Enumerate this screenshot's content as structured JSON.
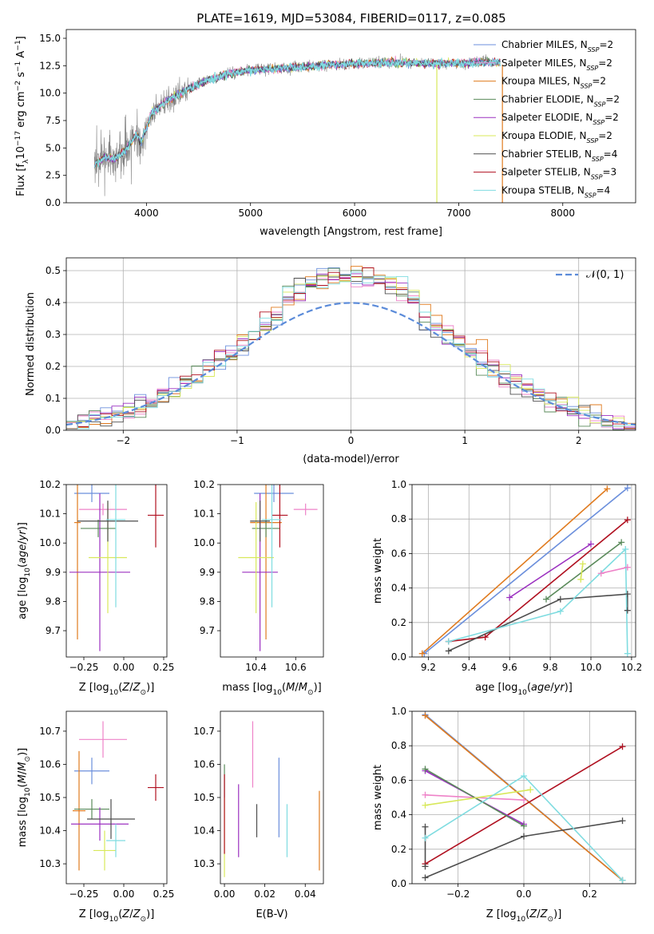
{
  "figure_title": "PLATE=1619, MJD=53084, FIBERID=0117, z=0.085",
  "colors": {
    "chabrier_miles": "#6b8fdc",
    "salpeter_miles": "#ee82c8",
    "kroupa_miles": "#e07b1f",
    "chabrier_elodie": "#5a8a5a",
    "salpeter_elodie": "#9b30c0",
    "kroupa_elodie": "#d8e85a",
    "chabrier_stelib": "#4d4d4d",
    "salpeter_stelib": "#b01020",
    "kroupa_stelib": "#7fdce0",
    "data": "#808080",
    "gaussian": "#5b8bd9"
  },
  "chart_data": [
    {
      "id": "spectrum",
      "type": "line",
      "xlabel": "wavelength [Angstrom, rest frame]",
      "ylabel": "Flux [f_λ 10^-17 erg cm^-2 s^-1 A^-1]",
      "xlim": [
        3230,
        8700
      ],
      "ylim": [
        0,
        15.8
      ],
      "xticks": [
        4000,
        5000,
        6000,
        7000,
        8000
      ],
      "yticks": [
        0.0,
        2.5,
        5.0,
        7.5,
        10.0,
        12.5,
        15.0
      ],
      "ytick_labels": [
        "0.0",
        "2.5",
        "5.0",
        "7.5",
        "10.0",
        "12.5",
        "15.0"
      ],
      "legend_position": "upper right",
      "continuum_x": [
        3500,
        3600,
        3700,
        3800,
        3900,
        3950,
        4050,
        4200,
        4400,
        4600,
        4800,
        5000,
        5200,
        5500,
        5800,
        6100,
        6400,
        6700,
        7000,
        7200,
        7400
      ],
      "continuum_y": [
        3.4,
        4.2,
        4.0,
        4.8,
        6.2,
        5.5,
        8.2,
        9.3,
        10.4,
        11.2,
        11.8,
        12.1,
        12.2,
        12.4,
        12.6,
        12.7,
        12.8,
        12.7,
        12.7,
        12.8,
        12.8
      ],
      "series": [
        {
          "name": "Chabrier MILES, N$_{SSP}$=2",
          "color_key": "chabrier_miles"
        },
        {
          "name": "Salpeter MILES, N$_{SSP}$=2",
          "color_key": "salpeter_miles"
        },
        {
          "name": "Kroupa MILES, N$_{SSP}$=2",
          "color_key": "kroupa_miles"
        },
        {
          "name": "Chabrier ELODIE, N$_{SSP}$=2",
          "color_key": "chabrier_elodie"
        },
        {
          "name": "Salpeter ELODIE, N$_{SSP}$=2",
          "color_key": "salpeter_elodie"
        },
        {
          "name": "Kroupa ELODIE, N$_{SSP}$=2",
          "color_key": "kroupa_elodie"
        },
        {
          "name": "Chabrier STELIB, N$_{SSP}$=4",
          "color_key": "chabrier_stelib"
        },
        {
          "name": "Salpeter STELIB, N$_{SSP}$=3",
          "color_key": "salpeter_stelib"
        },
        {
          "name": "Kroupa STELIB, N$_{SSP}$=4",
          "color_key": "kroupa_stelib"
        }
      ],
      "vertical_drops": [
        {
          "x": 6790,
          "color_key": "kroupa_elodie"
        },
        {
          "x": 7420,
          "color_key": "kroupa_miles"
        }
      ]
    },
    {
      "id": "residuals",
      "type": "histogram",
      "xlabel": "(data-model)/error",
      "ylabel": "Normed distribution",
      "xlim": [
        -2.5,
        2.5
      ],
      "ylim": [
        0,
        0.54
      ],
      "xticks": [
        -2,
        -1,
        0,
        1,
        2
      ],
      "xtick_labels": [
        "−2",
        "−1",
        "0",
        "1",
        "2"
      ],
      "yticks": [
        0.0,
        0.1,
        0.2,
        0.3,
        0.4,
        0.5
      ],
      "ytick_labels": [
        "0.0",
        "0.1",
        "0.2",
        "0.3",
        "0.4",
        "0.5"
      ],
      "grid": true,
      "bin_width": 0.1,
      "legend": "𝒩(0, 1)",
      "legend_position": "upper right"
    },
    {
      "id": "age_vs_Z",
      "type": "errorbar",
      "xlabel": "Z [log10(Z/Z⊙)]",
      "ylabel": "age [log10(age/yr)]",
      "xlim": [
        -0.36,
        0.27
      ],
      "ylim": [
        9.61,
        10.2
      ],
      "xticks": [
        -0.25,
        0.0,
        0.25
      ],
      "xtick_labels": [
        "−0.25",
        "0.00",
        "0.25"
      ],
      "yticks": [
        9.7,
        9.8,
        9.9,
        10.0,
        10.1,
        10.2
      ],
      "ytick_labels": [
        "9.7",
        "9.8",
        "9.9",
        "10.0",
        "10.1",
        "10.2"
      ],
      "points": [
        {
          "k": "chabrier_miles",
          "x": -0.2,
          "xerr": 0.11,
          "y": 10.17,
          "yerr": 0.03
        },
        {
          "k": "salpeter_miles",
          "x": -0.13,
          "xerr": 0.15,
          "y": 10.115,
          "yerr": 0.02
        },
        {
          "k": "kroupa_miles",
          "x": -0.29,
          "xerr": 0.02,
          "y": 10.07,
          "yerr": 0.4
        },
        {
          "k": "chabrier_elodie",
          "x": -0.16,
          "xerr": 0.11,
          "y": 10.05,
          "yerr": 0.03
        },
        {
          "k": "salpeter_elodie",
          "x": -0.15,
          "xerr": 0.19,
          "y": 9.9,
          "yerr": 0.27
        },
        {
          "k": "kroupa_elodie",
          "x": -0.1,
          "xerr": 0.12,
          "y": 9.95,
          "yerr": 0.19
        },
        {
          "k": "chabrier_stelib",
          "x": -0.1,
          "xerr": 0.19,
          "y": 10.075,
          "yerr": 0.07
        },
        {
          "k": "salpeter_stelib",
          "x": 0.2,
          "xerr": 0.05,
          "y": 10.095,
          "yerr": 0.11
        },
        {
          "k": "kroupa_stelib",
          "x": -0.05,
          "xerr": 0.06,
          "y": 10.08,
          "yerr": 0.3
        }
      ]
    },
    {
      "id": "age_vs_mass",
      "type": "errorbar",
      "xlabel": "mass [log10(M/M⊙)]",
      "ylabel": "",
      "xlim": [
        10.22,
        10.74
      ],
      "ylim": [
        9.61,
        10.2
      ],
      "xticks": [
        10.4,
        10.6
      ],
      "xtick_labels": [
        "10.4",
        "10.6"
      ],
      "yticks": [
        9.7,
        9.8,
        9.9,
        10.0,
        10.1,
        10.2
      ],
      "ytick_labels": [
        "9.7",
        "9.8",
        "9.9",
        "10.0",
        "10.1",
        "10.2"
      ],
      "points": [
        {
          "k": "chabrier_miles",
          "x": 10.49,
          "xerr": 0.1,
          "y": 10.17,
          "yerr": 0.03
        },
        {
          "k": "salpeter_miles",
          "x": 10.65,
          "xerr": 0.06,
          "y": 10.115,
          "yerr": 0.02
        },
        {
          "k": "kroupa_miles",
          "x": 10.45,
          "xerr": 0.08,
          "y": 10.07,
          "yerr": 0.4
        },
        {
          "k": "chabrier_elodie",
          "x": 10.45,
          "xerr": 0.07,
          "y": 10.05,
          "yerr": 0.03
        },
        {
          "k": "salpeter_elodie",
          "x": 10.42,
          "xerr": 0.09,
          "y": 9.9,
          "yerr": 0.27
        },
        {
          "k": "kroupa_elodie",
          "x": 10.4,
          "xerr": 0.09,
          "y": 9.95,
          "yerr": 0.19
        },
        {
          "k": "chabrier_stelib",
          "x": 10.42,
          "xerr": 0.05,
          "y": 10.075,
          "yerr": 0.07
        },
        {
          "k": "salpeter_stelib",
          "x": 10.52,
          "xerr": 0.04,
          "y": 10.095,
          "yerr": 0.11
        },
        {
          "k": "kroupa_stelib",
          "x": 10.48,
          "xerr": 0.05,
          "y": 10.08,
          "yerr": 0.3
        }
      ]
    },
    {
      "id": "weight_vs_age",
      "type": "line",
      "xlabel": "age [log10(age/yr)]",
      "ylabel": "mass weight",
      "xlim": [
        9.12,
        10.22
      ],
      "ylim": [
        0,
        1.0
      ],
      "xticks": [
        9.2,
        9.4,
        9.6,
        9.8,
        10.0,
        10.2
      ],
      "xtick_labels": [
        "9.2",
        "9.4",
        "9.6",
        "9.8",
        "10.0",
        "10.2"
      ],
      "yticks": [
        0.0,
        0.2,
        0.4,
        0.6,
        0.8,
        1.0
      ],
      "ytick_labels": [
        "0.0",
        "0.2",
        "0.4",
        "0.6",
        "0.8",
        "1.0"
      ],
      "grid": true,
      "series": [
        {
          "k": "chabrier_miles",
          "x": [
            9.18,
            10.18
          ],
          "y": [
            0.02,
            0.98
          ]
        },
        {
          "k": "kroupa_miles",
          "x": [
            9.17,
            10.08
          ],
          "y": [
            0.02,
            0.975
          ]
        },
        {
          "k": "salpeter_miles",
          "x": [
            10.05,
            10.18
          ],
          "y": [
            0.485,
            0.52
          ]
        },
        {
          "k": "salpeter_stelib",
          "x": [
            9.3,
            9.48,
            10.18
          ],
          "y": [
            0.09,
            0.115,
            0.795
          ]
        },
        {
          "k": "salpeter_elodie",
          "x": [
            9.6,
            10.0
          ],
          "y": [
            0.345,
            0.655
          ]
        },
        {
          "k": "chabrier_elodie",
          "x": [
            9.78,
            10.15
          ],
          "y": [
            0.335,
            0.665
          ]
        },
        {
          "k": "kroupa_elodie",
          "x": [
            9.95,
            9.96
          ],
          "y": [
            0.45,
            0.54
          ]
        },
        {
          "k": "chabrier_stelib",
          "x": [
            9.3,
            9.85,
            10.18,
            10.18
          ],
          "y": [
            0.035,
            0.335,
            0.365,
            0.27
          ]
        },
        {
          "k": "kroupa_stelib",
          "x": [
            9.3,
            9.85,
            10.17,
            10.18
          ],
          "y": [
            0.09,
            0.265,
            0.625,
            0.02
          ]
        }
      ]
    },
    {
      "id": "mass_vs_Z",
      "type": "errorbar",
      "xlabel": "Z [log10(Z/Z⊙)]",
      "ylabel": "mass [log10(M/M⊙)]",
      "xlim": [
        -0.36,
        0.27
      ],
      "ylim": [
        10.24,
        10.76
      ],
      "xticks": [
        -0.25,
        0.0,
        0.25
      ],
      "xtick_labels": [
        "−0.25",
        "0.00",
        "0.25"
      ],
      "yticks": [
        10.3,
        10.4,
        10.5,
        10.6,
        10.7
      ],
      "ytick_labels": [
        "10.3",
        "10.4",
        "10.5",
        "10.6",
        "10.7"
      ],
      "points": [
        {
          "k": "chabrier_miles",
          "x": -0.2,
          "xerr": 0.11,
          "y": 10.58,
          "yerr": 0.04
        },
        {
          "k": "salpeter_miles",
          "x": -0.13,
          "xerr": 0.15,
          "y": 10.675,
          "yerr": 0.055
        },
        {
          "k": "kroupa_miles",
          "x": -0.28,
          "xerr": 0.04,
          "y": 10.46,
          "yerr": 0.18
        },
        {
          "k": "chabrier_elodie",
          "x": -0.2,
          "xerr": 0.11,
          "y": 10.465,
          "yerr": 0.03
        },
        {
          "k": "salpeter_elodie",
          "x": -0.15,
          "xerr": 0.18,
          "y": 10.42,
          "yerr": 0.05
        },
        {
          "k": "kroupa_elodie",
          "x": -0.12,
          "xerr": 0.07,
          "y": 10.34,
          "yerr": 0.06
        },
        {
          "k": "chabrier_stelib",
          "x": -0.08,
          "xerr": 0.15,
          "y": 10.435,
          "yerr": 0.06
        },
        {
          "k": "salpeter_stelib",
          "x": 0.2,
          "xerr": 0.05,
          "y": 10.53,
          "yerr": 0.04
        },
        {
          "k": "kroupa_stelib",
          "x": -0.05,
          "xerr": 0.06,
          "y": 10.37,
          "yerr": 0.05
        }
      ]
    },
    {
      "id": "mass_vs_ebv",
      "type": "errorbar",
      "xlabel": "E(B-V)",
      "ylabel": "",
      "xlim": [
        -0.002,
        0.049
      ],
      "ylim": [
        10.24,
        10.76
      ],
      "xticks": [
        0.0,
        0.02,
        0.04
      ],
      "xtick_labels": [
        "0.00",
        "0.02",
        "0.04"
      ],
      "yticks": [
        10.3,
        10.4,
        10.5,
        10.6,
        10.7
      ],
      "ytick_labels": [
        "10.3",
        "10.4",
        "10.5",
        "10.6",
        "10.7"
      ],
      "points": [
        {
          "k": "chabrier_miles",
          "x": 0.027,
          "y": 10.5,
          "yerr": 0.12
        },
        {
          "k": "salpeter_miles",
          "x": 0.014,
          "y": 10.63,
          "yerr": 0.1
        },
        {
          "k": "kroupa_miles",
          "x": 0.047,
          "y": 10.4,
          "yerr": 0.12
        },
        {
          "k": "chabrier_elodie",
          "x": 0.0,
          "y": 10.55,
          "yerr": 0.05
        },
        {
          "k": "salpeter_elodie",
          "x": 0.007,
          "y": 10.43,
          "yerr": 0.11
        },
        {
          "k": "kroupa_elodie",
          "x": 0.0,
          "y": 10.38,
          "yerr": 0.12
        },
        {
          "k": "chabrier_stelib",
          "x": 0.016,
          "y": 10.43,
          "yerr": 0.05
        },
        {
          "k": "salpeter_stelib",
          "x": 0.0,
          "y": 10.45,
          "yerr": 0.12
        },
        {
          "k": "kroupa_stelib",
          "x": 0.031,
          "y": 10.4,
          "yerr": 0.08
        }
      ]
    },
    {
      "id": "weight_vs_Z",
      "type": "line",
      "xlabel": "Z [log10(Z/Z⊙)]",
      "ylabel": "mass weight",
      "xlim": [
        -0.34,
        0.34
      ],
      "ylim": [
        0,
        1.0
      ],
      "xticks": [
        -0.2,
        0.0,
        0.2
      ],
      "xtick_labels": [
        "−0.2",
        "0.0",
        "0.2"
      ],
      "yticks": [
        0.0,
        0.2,
        0.4,
        0.6,
        0.8,
        1.0
      ],
      "ytick_labels": [
        "0.0",
        "0.2",
        "0.4",
        "0.6",
        "0.8",
        "1.0"
      ],
      "grid": true,
      "series": [
        {
          "k": "chabrier_miles",
          "x": [
            -0.3,
            0.3
          ],
          "y": [
            0.98,
            0.02
          ]
        },
        {
          "k": "kroupa_miles",
          "x": [
            -0.3,
            0.3
          ],
          "y": [
            0.975,
            0.02
          ]
        },
        {
          "k": "salpeter_miles",
          "x": [
            -0.3,
            0.0
          ],
          "y": [
            0.515,
            0.485
          ]
        },
        {
          "k": "salpeter_stelib",
          "x": [
            -0.3,
            0.3
          ],
          "y": [
            0.115,
            0.795
          ]
        },
        {
          "k": "salpeter_elodie",
          "x": [
            -0.3,
            0.0
          ],
          "y": [
            0.655,
            0.345
          ]
        },
        {
          "k": "chabrier_elodie",
          "x": [
            -0.3,
            0.0
          ],
          "y": [
            0.665,
            0.335
          ]
        },
        {
          "k": "kroupa_elodie",
          "x": [
            -0.3,
            0.02
          ],
          "y": [
            0.455,
            0.545
          ]
        },
        {
          "k": "chabrier_stelib",
          "x": [
            -0.3,
            0.0,
            0.3
          ],
          "y": [
            0.035,
            0.275,
            0.365
          ]
        },
        {
          "k": "kroupa_stelib",
          "x": [
            -0.3,
            0.0,
            0.3
          ],
          "y": [
            0.265,
            0.625,
            0.02
          ]
        },
        {
          "k": "chabrier_stelib",
          "x": [
            -0.3,
            -0.3
          ],
          "y": [
            0.1,
            0.33
          ]
        }
      ]
    }
  ]
}
